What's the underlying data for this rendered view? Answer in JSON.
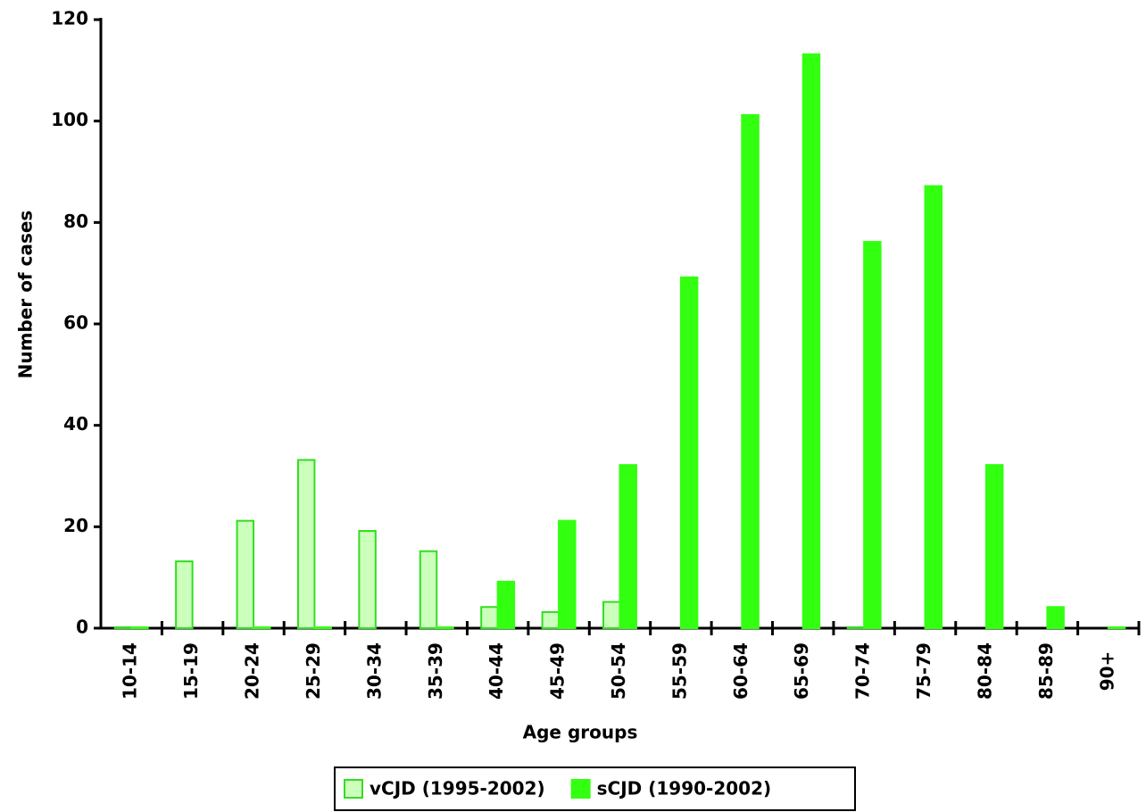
{
  "chart_data": {
    "type": "bar",
    "x_label": "Age groups",
    "y_label": "Number of cases",
    "categories": [
      "10-14",
      "15-19",
      "20-24",
      "25-29",
      "30-34",
      "35-39",
      "40-44",
      "45-49",
      "50-54",
      "55-59",
      "60-64",
      "65-69",
      "70-74",
      "75-79",
      "80-84",
      "85-89",
      "90+"
    ],
    "series": [
      {
        "name": "vCJD (1995-2002)",
        "color": "#ccffbb",
        "edge_color": "#33dd22",
        "values": [
          0,
          13,
          21,
          33,
          19,
          15,
          4,
          3,
          5,
          null,
          null,
          null,
          0,
          null,
          null,
          null,
          null
        ]
      },
      {
        "name": "sCJD (1990-2002)",
        "color": "#33ff11",
        "edge_color": "#33ff11",
        "values": [
          0,
          null,
          0,
          0,
          null,
          0,
          9,
          21,
          32,
          69,
          101,
          113,
          76,
          87,
          32,
          4,
          0
        ]
      }
    ],
    "ylim": [
      0,
      120
    ],
    "yticks": [
      0,
      20,
      40,
      60,
      80,
      100,
      120
    ],
    "grid": false,
    "legend": "bottom"
  }
}
